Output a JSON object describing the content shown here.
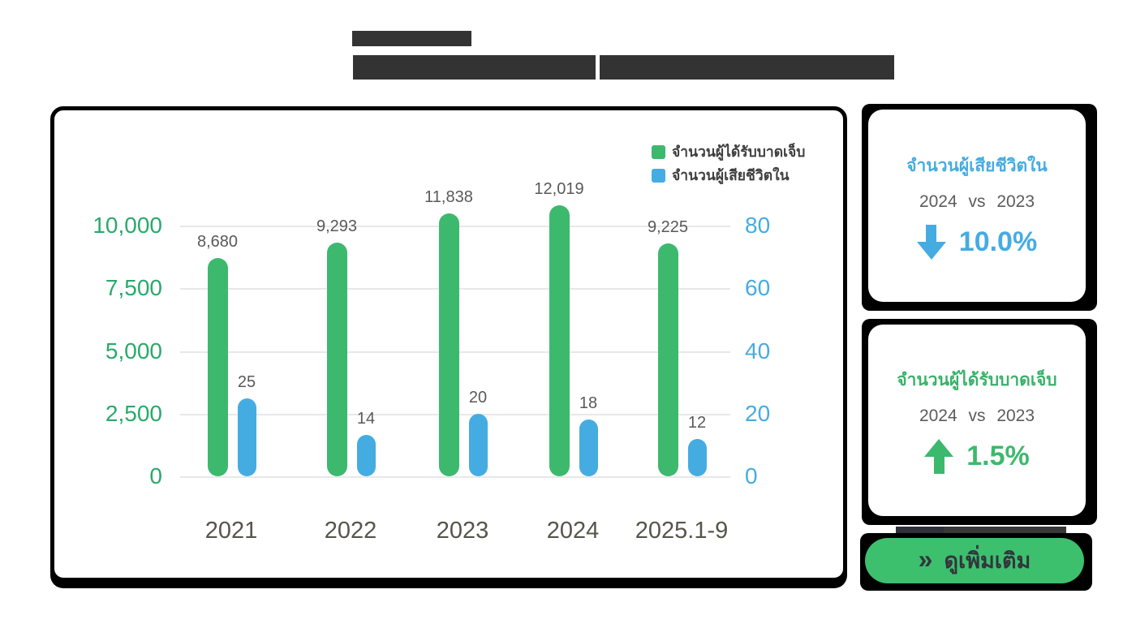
{
  "chart_data": {
    "type": "bar",
    "subtype": "grouped-dual-axis",
    "categories": [
      "2021",
      "2022",
      "2023",
      "2024",
      "2025.1-9"
    ],
    "series": [
      {
        "name": "จำนวนผู้ได้รับบาดเจ็บ",
        "axis": "left",
        "color": "#3cb96d",
        "values": [
          8680,
          9293,
          11838,
          12019,
          9225
        ],
        "labels": [
          "8,680",
          "9,293",
          "11,838",
          "12,019",
          "9,225"
        ]
      },
      {
        "name": "จำนวนผู้เสียชีวิตใน",
        "axis": "right",
        "color": "#45ace2",
        "values": [
          25,
          14,
          20,
          18,
          12
        ],
        "labels": [
          "25",
          "14",
          "20",
          "18",
          "12"
        ]
      }
    ],
    "left_axis": {
      "color": "#2aa96b",
      "range": [
        0,
        10000
      ],
      "ticks_top_to_bottom": [
        "10,000",
        "7,500",
        "5,000",
        "2,500",
        "0"
      ]
    },
    "right_axis": {
      "color": "#45ace2",
      "range": [
        0,
        80
      ],
      "ticks_top_to_bottom": [
        "80",
        "60",
        "40",
        "20",
        "0"
      ]
    },
    "grid": true,
    "legend_position": "top-right"
  },
  "legend": {
    "injured_label": "จำนวนผู้ได้รับบาดเจ็บ",
    "deaths_label": "จำนวนผู้เสียชีวิตใน"
  },
  "stat_cards": [
    {
      "title": "จำนวนผู้เสียชีวิตใน",
      "compare": "2024 vs 2023",
      "direction": "down",
      "value": "10.0%",
      "accent": "#45ace2"
    },
    {
      "title": "จำนวนผู้ได้รับบาดเจ็บ",
      "compare": "2024 vs 2023",
      "direction": "up",
      "value": "1.5%",
      "accent": "#3cb96d"
    }
  ],
  "more_button": {
    "chevron": "»",
    "label": "ดูเพิ่มเติม"
  },
  "colors": {
    "green": "#3cb96d",
    "blue": "#45ace2",
    "redaction": "#333333",
    "grid": "#e8e8e8",
    "value_label": "#595959",
    "x_label": "#56554b"
  }
}
